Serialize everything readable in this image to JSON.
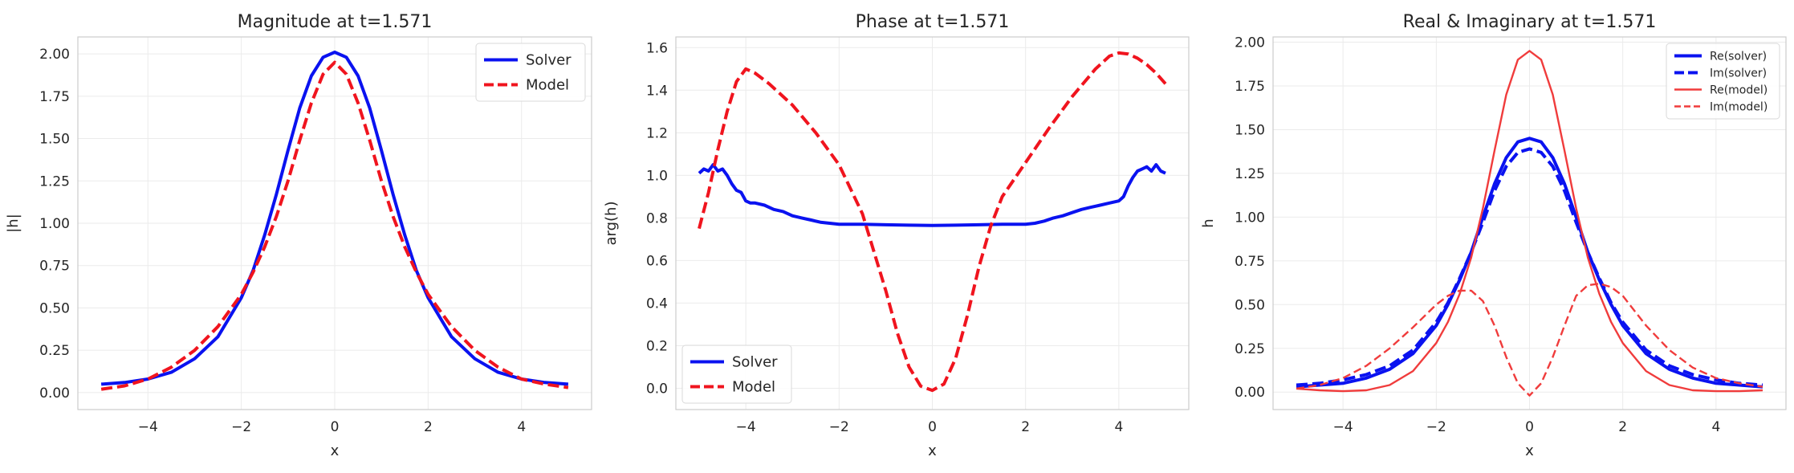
{
  "figure": {
    "background": "#ffffff",
    "grid_color": "#ebebeb",
    "spine_color": "#cccccc"
  },
  "chart_data": [
    {
      "type": "line",
      "title": "Magnitude at t=1.571",
      "xlabel": "x",
      "ylabel": "|h|",
      "xlim": [
        -5.5,
        5.5
      ],
      "ylim": [
        -0.1,
        2.1
      ],
      "xticks": [
        -4,
        -2,
        0,
        2,
        4
      ],
      "xtick_labels": [
        "−4",
        "−2",
        "0",
        "2",
        "4"
      ],
      "yticks": [
        0,
        0.25,
        0.5,
        0.75,
        1.0,
        1.25,
        1.5,
        1.75,
        2.0
      ],
      "ytick_labels": [
        "0.00",
        "0.25",
        "0.50",
        "0.75",
        "1.00",
        "1.25",
        "1.50",
        "1.75",
        "2.00"
      ],
      "grid": true,
      "legend": "top-right",
      "series": [
        {
          "name": "Solver",
          "color": "#0a12f0",
          "style": "solid",
          "width": "thick",
          "x": [
            -5,
            -4.5,
            -4,
            -3.5,
            -3,
            -2.5,
            -2,
            -1.75,
            -1.5,
            -1.25,
            -1,
            -0.75,
            -0.5,
            -0.25,
            0,
            0.25,
            0.5,
            0.75,
            1,
            1.25,
            1.5,
            1.75,
            2,
            2.5,
            3,
            3.5,
            4,
            4.5,
            5
          ],
          "y": [
            0.05,
            0.06,
            0.08,
            0.12,
            0.2,
            0.33,
            0.56,
            0.72,
            0.93,
            1.17,
            1.43,
            1.68,
            1.87,
            1.98,
            2.01,
            1.98,
            1.87,
            1.68,
            1.43,
            1.17,
            0.93,
            0.72,
            0.56,
            0.33,
            0.2,
            0.12,
            0.08,
            0.06,
            0.05
          ]
        },
        {
          "name": "Model",
          "color": "#f0141e",
          "style": "dashed",
          "width": "thick",
          "x": [
            -5,
            -4.5,
            -4,
            -3.5,
            -3,
            -2.5,
            -2,
            -1.75,
            -1.5,
            -1.25,
            -1,
            -0.75,
            -0.5,
            -0.25,
            0,
            0.25,
            0.5,
            0.75,
            1,
            1.25,
            1.5,
            1.75,
            2,
            2.5,
            3,
            3.5,
            4,
            4.5,
            5
          ],
          "y": [
            0.02,
            0.04,
            0.08,
            0.15,
            0.25,
            0.39,
            0.58,
            0.71,
            0.86,
            1.04,
            1.25,
            1.49,
            1.71,
            1.88,
            1.95,
            1.88,
            1.71,
            1.49,
            1.25,
            1.04,
            0.86,
            0.71,
            0.58,
            0.39,
            0.25,
            0.15,
            0.08,
            0.05,
            0.03
          ]
        }
      ]
    },
    {
      "type": "line",
      "title": "Phase at t=1.571",
      "xlabel": "x",
      "ylabel": "arg(h)",
      "xlim": [
        -5.5,
        5.5
      ],
      "ylim": [
        -0.1,
        1.65
      ],
      "xticks": [
        -4,
        -2,
        0,
        2,
        4
      ],
      "xtick_labels": [
        "−4",
        "−2",
        "0",
        "2",
        "4"
      ],
      "yticks": [
        0,
        0.2,
        0.4,
        0.6,
        0.8,
        1.0,
        1.2,
        1.4,
        1.6
      ],
      "ytick_labels": [
        "0.0",
        "0.2",
        "0.4",
        "0.6",
        "0.8",
        "1.0",
        "1.2",
        "1.4",
        "1.6"
      ],
      "grid": true,
      "legend": "bottom-left",
      "series": [
        {
          "name": "Solver",
          "color": "#0a12f0",
          "style": "solid",
          "width": "thick",
          "x": [
            -5,
            -4.9,
            -4.8,
            -4.7,
            -4.6,
            -4.5,
            -4.4,
            -4.3,
            -4.2,
            -4.1,
            -4,
            -3.9,
            -3.8,
            -3.6,
            -3.4,
            -3.2,
            -3.0,
            -2.8,
            -2.6,
            -2.4,
            -2.2,
            -2.0,
            -1.5,
            -1.0,
            -0.5,
            0,
            0.5,
            1.0,
            1.5,
            2.0,
            2.2,
            2.4,
            2.6,
            2.8,
            3.0,
            3.2,
            3.4,
            3.6,
            3.8,
            4.0,
            4.1,
            4.2,
            4.3,
            4.4,
            4.5,
            4.6,
            4.7,
            4.8,
            4.9,
            5.0
          ],
          "y": [
            1.01,
            1.03,
            1.02,
            1.05,
            1.02,
            1.03,
            1.0,
            0.96,
            0.93,
            0.92,
            0.88,
            0.87,
            0.87,
            0.86,
            0.84,
            0.83,
            0.81,
            0.8,
            0.79,
            0.78,
            0.775,
            0.77,
            0.77,
            0.768,
            0.766,
            0.765,
            0.766,
            0.768,
            0.77,
            0.77,
            0.775,
            0.785,
            0.8,
            0.81,
            0.825,
            0.84,
            0.85,
            0.86,
            0.87,
            0.88,
            0.9,
            0.95,
            0.99,
            1.02,
            1.03,
            1.04,
            1.02,
            1.05,
            1.02,
            1.01
          ]
        },
        {
          "name": "Model",
          "color": "#f0141e",
          "style": "dashed",
          "width": "thick",
          "x": [
            -5,
            -4.8,
            -4.6,
            -4.4,
            -4.2,
            -4.0,
            -3.8,
            -3.5,
            -3.0,
            -2.5,
            -2.0,
            -1.5,
            -1.0,
            -0.75,
            -0.5,
            -0.25,
            0,
            0.25,
            0.5,
            0.75,
            1.0,
            1.25,
            1.5,
            2.0,
            2.5,
            3.0,
            3.5,
            3.8,
            4.0,
            4.2,
            4.4,
            4.6,
            4.8,
            5.0
          ],
          "y": [
            0.75,
            0.92,
            1.12,
            1.3,
            1.44,
            1.5,
            1.48,
            1.43,
            1.33,
            1.2,
            1.05,
            0.82,
            0.46,
            0.26,
            0.1,
            0.01,
            -0.01,
            0.02,
            0.14,
            0.34,
            0.57,
            0.76,
            0.9,
            1.06,
            1.22,
            1.37,
            1.5,
            1.56,
            1.575,
            1.57,
            1.55,
            1.52,
            1.48,
            1.43
          ]
        }
      ]
    },
    {
      "type": "line",
      "title": "Real & Imaginary at t=1.571",
      "xlabel": "x",
      "ylabel": "h",
      "xlim": [
        -5.5,
        5.5
      ],
      "ylim": [
        -0.1,
        2.03
      ],
      "xticks": [
        -4,
        -2,
        0,
        2,
        4
      ],
      "xtick_labels": [
        "−4",
        "−2",
        "0",
        "2",
        "4"
      ],
      "yticks": [
        0,
        0.25,
        0.5,
        0.75,
        1.0,
        1.25,
        1.5,
        1.75,
        2.0
      ],
      "ytick_labels": [
        "0.00",
        "0.25",
        "0.50",
        "0.75",
        "1.00",
        "1.25",
        "1.50",
        "1.75",
        "2.00"
      ],
      "grid": true,
      "legend": "top-right",
      "series": [
        {
          "name": "Re(solver)",
          "color": "#0a12f0",
          "style": "solid",
          "width": "thick",
          "x": [
            -5,
            -4.5,
            -4,
            -3.5,
            -3,
            -2.5,
            -2,
            -1.75,
            -1.5,
            -1.25,
            -1,
            -0.75,
            -0.5,
            -0.25,
            0,
            0.25,
            0.5,
            0.75,
            1,
            1.25,
            1.5,
            1.75,
            2,
            2.5,
            3,
            3.5,
            4,
            4.5,
            5
          ],
          "y": [
            0.03,
            0.04,
            0.05,
            0.08,
            0.13,
            0.22,
            0.38,
            0.5,
            0.64,
            0.8,
            1.0,
            1.19,
            1.34,
            1.43,
            1.45,
            1.43,
            1.34,
            1.19,
            1.0,
            0.8,
            0.64,
            0.5,
            0.38,
            0.22,
            0.13,
            0.08,
            0.05,
            0.04,
            0.03
          ]
        },
        {
          "name": "Im(solver)",
          "color": "#0a12f0",
          "style": "dashed",
          "width": "thick",
          "x": [
            -5,
            -4.5,
            -4,
            -3.5,
            -3,
            -2.5,
            -2,
            -1.75,
            -1.5,
            -1.25,
            -1,
            -0.75,
            -0.5,
            -0.25,
            0,
            0.25,
            0.5,
            0.75,
            1,
            1.25,
            1.5,
            1.75,
            2,
            2.5,
            3,
            3.5,
            4,
            4.5,
            5
          ],
          "y": [
            0.04,
            0.05,
            0.07,
            0.1,
            0.15,
            0.24,
            0.4,
            0.51,
            0.65,
            0.8,
            0.97,
            1.15,
            1.29,
            1.37,
            1.39,
            1.37,
            1.29,
            1.15,
            0.97,
            0.8,
            0.65,
            0.51,
            0.4,
            0.24,
            0.15,
            0.1,
            0.07,
            0.05,
            0.04
          ]
        },
        {
          "name": "Re(model)",
          "color": "#f03c3c",
          "style": "solid",
          "width": "thin",
          "x": [
            -5,
            -4.5,
            -4,
            -3.5,
            -3,
            -2.5,
            -2,
            -1.75,
            -1.5,
            -1.25,
            -1,
            -0.75,
            -0.5,
            -0.25,
            0,
            0.25,
            0.5,
            0.75,
            1,
            1.25,
            1.5,
            1.75,
            2,
            2.5,
            3,
            3.5,
            4,
            4.5,
            5
          ],
          "y": [
            0.02,
            0.01,
            0.005,
            0.01,
            0.04,
            0.12,
            0.28,
            0.4,
            0.56,
            0.77,
            1.05,
            1.38,
            1.7,
            1.9,
            1.95,
            1.9,
            1.7,
            1.38,
            1.05,
            0.77,
            0.56,
            0.4,
            0.28,
            0.12,
            0.04,
            0.01,
            0.005,
            0.005,
            0.01
          ]
        },
        {
          "name": "Im(model)",
          "color": "#f03c3c",
          "style": "dashed",
          "width": "thin",
          "x": [
            -5,
            -4.5,
            -4,
            -3.5,
            -3,
            -2.5,
            -2,
            -1.75,
            -1.5,
            -1.25,
            -1,
            -0.75,
            -0.5,
            -0.25,
            0,
            0.25,
            0.5,
            0.75,
            1,
            1.25,
            1.5,
            1.75,
            2,
            2.5,
            3,
            3.5,
            4,
            4.5,
            5
          ],
          "y": [
            0.02,
            0.04,
            0.08,
            0.15,
            0.25,
            0.37,
            0.5,
            0.55,
            0.58,
            0.58,
            0.52,
            0.38,
            0.2,
            0.05,
            -0.02,
            0.05,
            0.2,
            0.38,
            0.55,
            0.61,
            0.62,
            0.6,
            0.55,
            0.38,
            0.24,
            0.14,
            0.08,
            0.05,
            0.03
          ]
        }
      ]
    }
  ]
}
